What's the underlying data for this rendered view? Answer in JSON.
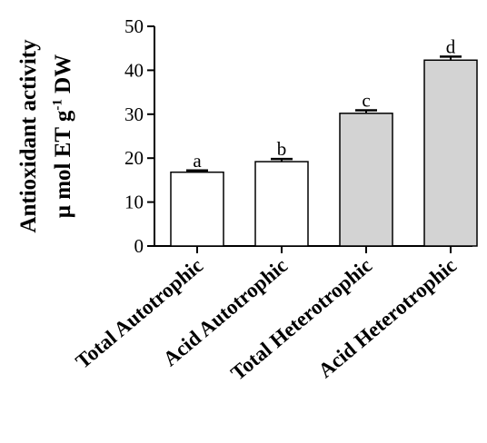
{
  "chart_data": {
    "type": "bar",
    "categories": [
      "Total Autotrophic",
      "Acid Autotrophic",
      "Total Heterotrophic",
      "Acid Heterotrophic"
    ],
    "values": [
      16.8,
      19.2,
      30.2,
      42.3
    ],
    "errors": [
      0.4,
      0.6,
      0.7,
      0.8
    ],
    "significance_letters": [
      "a",
      "b",
      "c",
      "d"
    ],
    "bar_colors": [
      "#ffffff",
      "#ffffff",
      "#d3d3d3",
      "#d3d3d3"
    ],
    "ylabel": {
      "line1": "Antioxidant activity",
      "line2_prefix": "μ mol ET g",
      "line2_superscript": "-1",
      "line2_suffix": " DW"
    },
    "ylim": [
      0,
      50
    ],
    "yticks": [
      "0",
      "10",
      "20",
      "30",
      "40",
      "50"
    ],
    "grid": false,
    "legend": "none"
  }
}
